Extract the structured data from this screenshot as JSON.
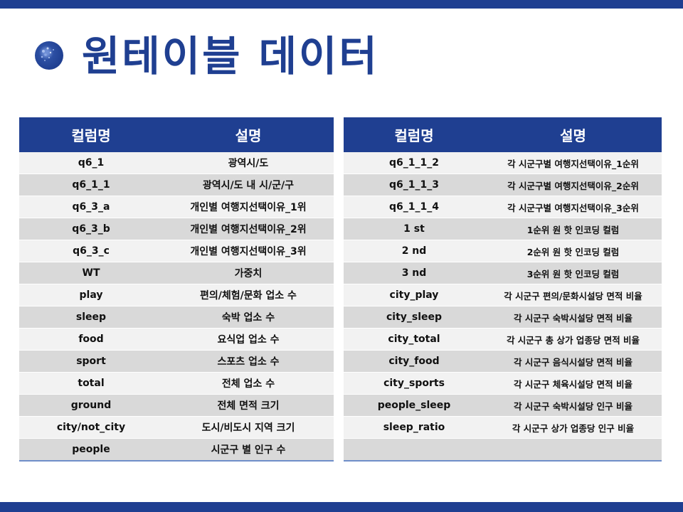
{
  "title": "원테이블 데이터",
  "header": {
    "col1": "컬럼명",
    "col2": "설명"
  },
  "left_rows": [
    {
      "col": "q6_1",
      "desc": "광역시/도"
    },
    {
      "col": "q6_1_1",
      "desc": "광역시/도 내 시/군/구"
    },
    {
      "col": "q6_3_a",
      "desc": "개인별 여행지선택이유_1위"
    },
    {
      "col": "q6_3_b",
      "desc": "개인별 여행지선택이유_2위"
    },
    {
      "col": "q6_3_c",
      "desc": "개인별 여행지선택이유_3위"
    },
    {
      "col": "WT",
      "desc": "가중치"
    },
    {
      "col": "play",
      "desc": "편의/체험/문화 업소 수"
    },
    {
      "col": "sleep",
      "desc": "숙박 업소 수"
    },
    {
      "col": "food",
      "desc": "요식업 업소 수"
    },
    {
      "col": "sport",
      "desc": "스포츠 업소 수"
    },
    {
      "col": "total",
      "desc": "전체 업소 수"
    },
    {
      "col": "ground",
      "desc": "전체 면적 크기"
    },
    {
      "col": "city/not_city",
      "desc": "도시/비도시 지역 크기"
    },
    {
      "col": "people",
      "desc": "시군구 별 인구 수"
    }
  ],
  "right_rows": [
    {
      "col": "q6_1_1_2",
      "desc": "각 시군구별 여행지선택이유_1순위"
    },
    {
      "col": "q6_1_1_3",
      "desc": "각 시군구별 여행지선택이유_2순위"
    },
    {
      "col": "q6_1_1_4",
      "desc": "각 시군구별 여행지선택이유_3순위"
    },
    {
      "col": "1 st",
      "desc": "1순위 원 핫 인코딩 컬럼"
    },
    {
      "col": "2 nd",
      "desc": "2순위 원 핫 인코딩 컬럼"
    },
    {
      "col": "3 nd",
      "desc": "3순위 원 핫 인코딩 컬럼"
    },
    {
      "col": "city_play",
      "desc": "각 시군구 편의/문화시설당 면적 비율"
    },
    {
      "col": "city_sleep",
      "desc": "각 시군구 숙박시설당 면적 비율"
    },
    {
      "col": "city_total",
      "desc": "각 시군구 총 상가 업종당 면적 비율"
    },
    {
      "col": "city_food",
      "desc": "각 시군구 음식시설당 면적 비율"
    },
    {
      "col": "city_sports",
      "desc": "각 시군구 체육시설당 면적 비율"
    },
    {
      "col": "people_sleep",
      "desc": "각 시군구 숙박시설당 인구 비율"
    },
    {
      "col": "sleep_ratio",
      "desc": "각 시군구 상가 업종당 인구 비율"
    },
    {
      "col": "",
      "desc": ""
    }
  ]
}
